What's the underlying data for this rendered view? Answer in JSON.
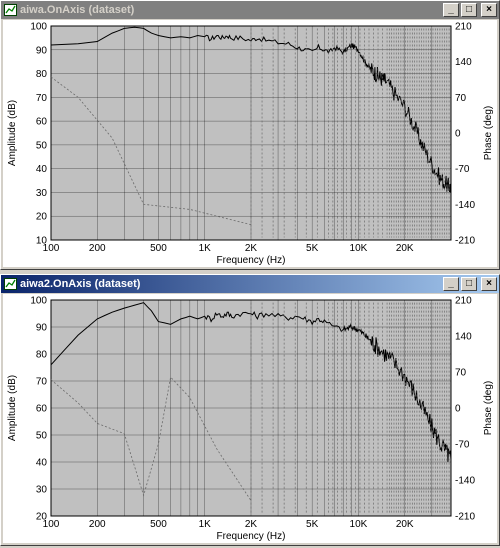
{
  "windows": [
    {
      "title": "aiwa.OnAxis (dataset)",
      "active": false,
      "buttons": {
        "minimize": "_",
        "maximize": "□",
        "close": "×"
      },
      "chart_data": {
        "type": "line",
        "xlabel": "Frequency (Hz)",
        "ylabel": "Amplitude (dB)",
        "y2label": "Phase (deg)",
        "xscale": "log",
        "xlim": [
          100,
          40000
        ],
        "ylim": [
          10,
          100
        ],
        "y2lim": [
          -210,
          210
        ],
        "x_ticks": [
          "100",
          "200",
          "500",
          "1K",
          "2K",
          "5K",
          "10K",
          "20K"
        ],
        "y_ticks": [
          "100",
          "90",
          "80",
          "70",
          "60",
          "50",
          "40",
          "30",
          "20",
          "10"
        ],
        "y2_ticks": [
          "210",
          "140",
          "70",
          "0",
          "-70",
          "-140",
          "-210"
        ],
        "grid": true,
        "series": [
          {
            "role": "amplitude",
            "style": "solid",
            "x": [
              100,
              150,
              200,
              250,
              300,
              350,
              400,
              450,
              500,
              600,
              700,
              800,
              900,
              1000,
              1100,
              1200,
              1300,
              1400,
              1500,
              1700,
              2000,
              2200,
              2500,
              3000,
              3500,
              4000,
              4500,
              5000,
              5500,
              6000,
              6500,
              7000,
              7500,
              8000,
              9000,
              10000,
              11000,
              12000,
              13000,
              14000,
              15000,
              17000,
              20000,
              23000,
              26000,
              30000,
              34000,
              38000,
              40000
            ],
            "y": [
              92,
              92.5,
              93.5,
              97,
              99,
              99.5,
              99,
              97,
              96,
              95,
              95.5,
              95,
              96,
              95.5,
              94.5,
              96,
              95,
              96,
              95,
              95,
              94,
              95,
              94,
              93,
              92.5,
              91,
              90,
              89,
              91,
              90,
              89,
              91,
              90,
              89,
              92,
              90,
              85,
              82,
              80,
              78,
              77,
              72,
              66,
              58,
              50,
              42,
              36,
              33,
              32
            ]
          },
          {
            "role": "phase",
            "style": "dashed",
            "x": [
              100,
              150,
              250,
              400,
              800,
              2000
            ],
            "y": [
              110,
              70,
              -10,
              -140,
              -150,
              -180
            ]
          }
        ]
      }
    },
    {
      "title": "aiwa2.OnAxis (dataset)",
      "active": true,
      "buttons": {
        "minimize": "_",
        "maximize": "□",
        "close": "×"
      },
      "chart_data": {
        "type": "line",
        "xlabel": "Frequency (Hz)",
        "ylabel": "Amplitude (dB)",
        "y2label": "Phase (deg)",
        "xscale": "log",
        "xlim": [
          100,
          40000
        ],
        "ylim": [
          20,
          100
        ],
        "y2lim": [
          -210,
          210
        ],
        "x_ticks": [
          "100",
          "200",
          "500",
          "1K",
          "2K",
          "5K",
          "10K",
          "20K"
        ],
        "y_ticks": [
          "100",
          "90",
          "80",
          "70",
          "60",
          "50",
          "40",
          "30",
          "20"
        ],
        "y2_ticks": [
          "210",
          "140",
          "70",
          "0",
          "-70",
          "-140",
          "-210"
        ],
        "grid": true,
        "series": [
          {
            "role": "amplitude",
            "style": "solid",
            "x": [
              100,
              150,
              200,
              250,
              300,
              400,
              450,
              500,
              600,
              700,
              800,
              900,
              1000,
              1100,
              1200,
              1300,
              1400,
              1500,
              1700,
              2000,
              2200,
              2500,
              3000,
              3500,
              4000,
              4500,
              5000,
              5500,
              6000,
              7000,
              8000,
              9000,
              10000,
              11000,
              12000,
              13000,
              15000,
              17000,
              20000,
              23000,
              26000,
              30000,
              34000,
              38000,
              40000
            ],
            "y": [
              76,
              87,
              93,
              95.5,
              97,
              99,
              96,
              92,
              91,
              93,
              94,
              93,
              94,
              93,
              95,
              94,
              95,
              94,
              95,
              95,
              94,
              95,
              94,
              93.5,
              94,
              93,
              92,
              93,
              92,
              90,
              89,
              90,
              89,
              87,
              85,
              83,
              80,
              77,
              72,
              66,
              60,
              53,
              47,
              43,
              41
            ]
          },
          {
            "role": "phase",
            "style": "dashed",
            "x": [
              100,
              150,
              200,
              300,
              400,
              500,
              600,
              800,
              1200,
              2000
            ],
            "y": [
              55,
              10,
              -30,
              -50,
              -170,
              -70,
              60,
              20,
              -80,
              -180
            ]
          }
        ]
      }
    }
  ]
}
